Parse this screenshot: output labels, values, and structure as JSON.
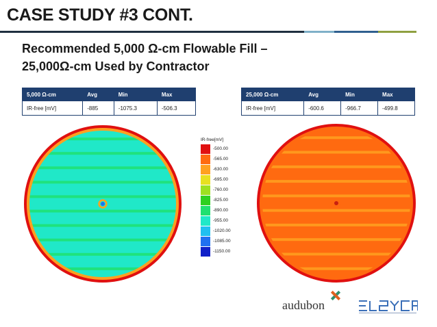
{
  "slide": {
    "title": "CASE STUDY #3 CONT.",
    "subtitle_line1": "Recommended 5,000 Ω-cm Flowable Fill –",
    "subtitle_line2": "25,000Ω-cm Used by Contractor"
  },
  "tables": [
    {
      "headers": [
        "5,000 Ω-cm",
        "Avg",
        "Min",
        "Max"
      ],
      "row": [
        "IR-free [mV]",
        "-885",
        "-1075.3",
        "-506.3"
      ]
    },
    {
      "headers": [
        "25,000 Ω-cm",
        "Avg",
        "Min",
        "Max"
      ],
      "row": [
        "IR-free [mV]",
        "-600.6",
        "-966.7",
        "-499.8"
      ]
    }
  ],
  "legend": {
    "title": "IR-free[mV]",
    "entries": [
      {
        "label": "-500.00",
        "color": "#e01010"
      },
      {
        "label": "-565.00",
        "color": "#ff6a10"
      },
      {
        "label": "-630.00",
        "color": "#ffa020"
      },
      {
        "label": "-695.00",
        "color": "#e8e020"
      },
      {
        "label": "-760.00",
        "color": "#9ee020"
      },
      {
        "label": "-825.00",
        "color": "#2ed020"
      },
      {
        "label": "-890.00",
        "color": "#20e070"
      },
      {
        "label": "-955.00",
        "color": "#20e8c8"
      },
      {
        "label": "-1020.00",
        "color": "#20c0f0"
      },
      {
        "label": "-1085.00",
        "color": "#2070f0"
      },
      {
        "label": "-1150.00",
        "color": "#1020c8"
      }
    ]
  },
  "maps": {
    "left": {
      "rim": "#e01010",
      "ring": "#ffa020",
      "fill": "#20e8c8",
      "stripe": "#20e070",
      "center": "#2070f0"
    },
    "right": {
      "rim": "#e01010",
      "ring": "#ff6a10",
      "fill": "#ff6a10",
      "stripe": "#ffa020",
      "center": "#c82010"
    }
  },
  "logos": {
    "audubon": "audubon",
    "elsyca": "elsyca"
  },
  "colors": {
    "header": "#1f3f6f",
    "rule_dark": "#1f2f3f",
    "rule_light": "#7fb0c8",
    "rule_blue": "#2f5f8f",
    "rule_olive": "#8fa040"
  }
}
